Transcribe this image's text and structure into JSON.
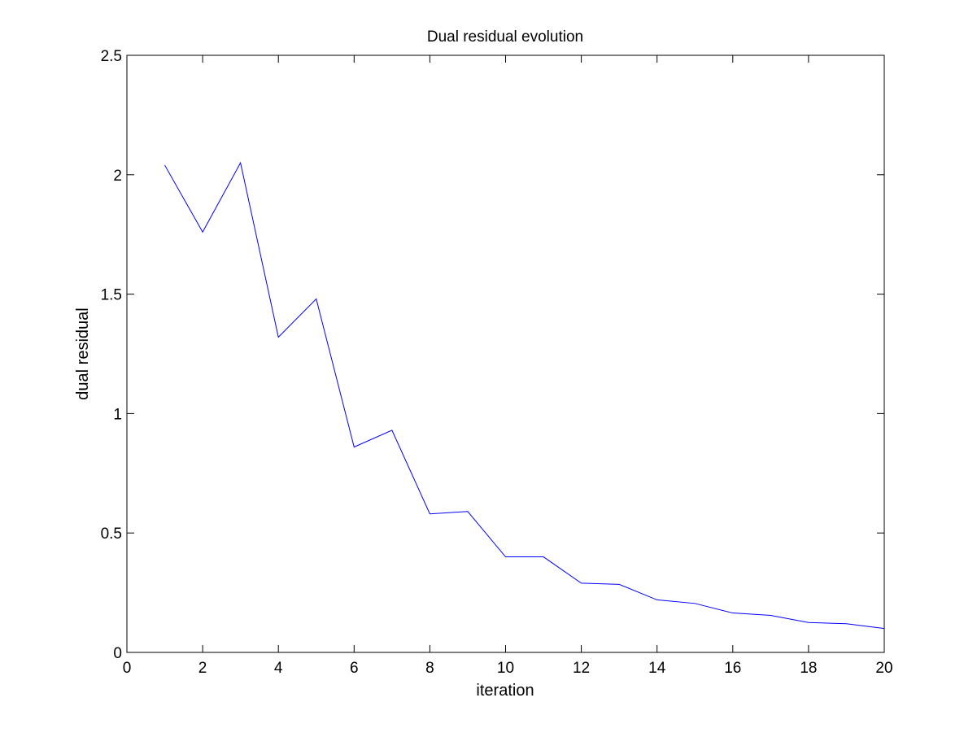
{
  "chart_data": {
    "type": "line",
    "title": "Dual residual evolution",
    "xlabel": "iteration",
    "ylabel": "dual residual",
    "xlim": [
      0,
      20
    ],
    "ylim": [
      0,
      2.5
    ],
    "xticks": [
      0,
      2,
      4,
      6,
      8,
      10,
      12,
      14,
      16,
      18,
      20
    ],
    "yticks": [
      0,
      0.5,
      1,
      1.5,
      2,
      2.5
    ],
    "xtick_labels": [
      "0",
      "2",
      "4",
      "6",
      "8",
      "10",
      "12",
      "14",
      "16",
      "18",
      "20"
    ],
    "ytick_labels": [
      "0",
      "0.5",
      "1",
      "1.5",
      "2",
      "2.5"
    ],
    "grid": false,
    "legend": "none",
    "series": [
      {
        "color": "#0000ff",
        "x": [
          1,
          2,
          3,
          4,
          5,
          6,
          7,
          8,
          9,
          10,
          11,
          12,
          13,
          14,
          15,
          16,
          17,
          18,
          19,
          20
        ],
        "values": [
          2.04,
          1.76,
          2.05,
          1.32,
          1.48,
          0.86,
          0.93,
          0.58,
          0.59,
          0.4,
          0.4,
          0.29,
          0.285,
          0.22,
          0.205,
          0.165,
          0.155,
          0.125,
          0.12,
          0.1
        ]
      }
    ]
  }
}
